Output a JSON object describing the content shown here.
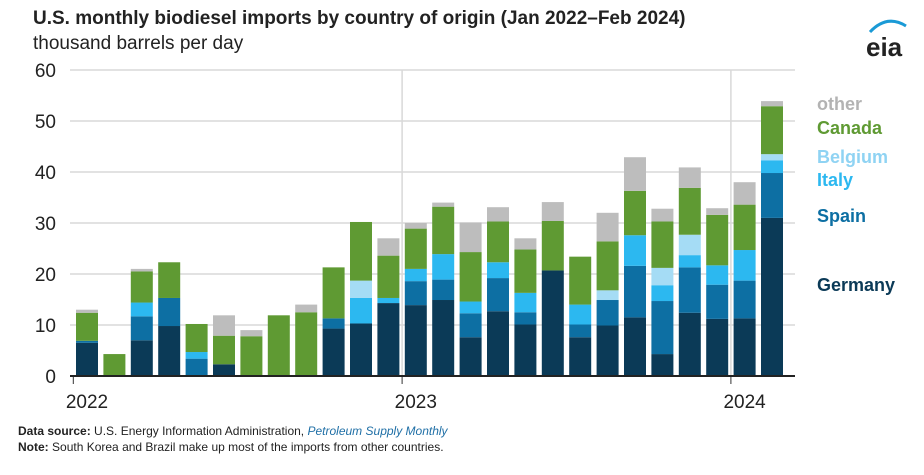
{
  "header": {
    "title": "U.S. monthly biodiesel imports by country of origin (Jan 2022–Feb 2024)",
    "subtitle": "thousand barrels per day",
    "logo_text": "eia"
  },
  "footer": {
    "source_label": "Data source:",
    "source_text": "U.S. Energy Information Administration,",
    "source_link": "Petroleum Supply Monthly",
    "note_label": "Note:",
    "note_text": "South Korea and Brazil make up most of the imports from other countries."
  },
  "chart_data": {
    "type": "bar",
    "stacked": true,
    "title": "U.S. monthly biodiesel imports by country of origin (Jan 2022–Feb 2024)",
    "ylabel": "thousand barrels per day",
    "ylim": [
      0,
      60
    ],
    "yticks": [
      "0",
      "10",
      "20",
      "30",
      "40",
      "50",
      "60"
    ],
    "xtick_labels": [
      {
        "label": "2022",
        "index": 0
      },
      {
        "label": "2023",
        "index": 12
      },
      {
        "label": "2024",
        "index": 24
      }
    ],
    "grid": true,
    "legend_placement": "right",
    "categories": [
      "Jan 2022",
      "Feb 2022",
      "Mar 2022",
      "Apr 2022",
      "May 2022",
      "Jun 2022",
      "Jul 2022",
      "Aug 2022",
      "Sep 2022",
      "Oct 2022",
      "Nov 2022",
      "Dec 2022",
      "Jan 2023",
      "Feb 2023",
      "Mar 2023",
      "Apr 2023",
      "May 2023",
      "Jun 2023",
      "Jul 2023",
      "Aug 2023",
      "Sep 2023",
      "Oct 2023",
      "Nov 2023",
      "Dec 2023",
      "Jan 2024",
      "Feb 2024"
    ],
    "series": [
      {
        "name": "Germany",
        "color": "#0b3a57",
        "values": [
          6.5,
          0,
          7,
          9.8,
          0,
          2.3,
          0,
          0,
          0,
          9.3,
          10.3,
          14.3,
          13.9,
          14.9,
          7.6,
          12.7,
          10.1,
          20.7,
          7.6,
          9.9,
          11.5,
          4.3,
          12.4,
          11.2,
          11.3,
          31
        ]
      },
      {
        "name": "Spain",
        "color": "#0d6fa3",
        "values": [
          0.4,
          0,
          4.7,
          5.5,
          3.4,
          0,
          0,
          0,
          0,
          2,
          0,
          0,
          4.7,
          4,
          4.7,
          6.5,
          2.4,
          0,
          2.5,
          5,
          10.1,
          10.4,
          8.9,
          6.7,
          7.4,
          8.8
        ]
      },
      {
        "name": "Italy",
        "color": "#2cb8f0",
        "values": [
          0,
          0,
          2.7,
          0,
          1.3,
          0,
          0,
          0,
          0,
          0,
          5,
          1,
          2.4,
          5,
          2.3,
          3.1,
          3.8,
          0,
          3.9,
          0,
          6,
          3.1,
          2.4,
          3.8,
          6,
          2.5
        ]
      },
      {
        "name": "Belgium",
        "color": "#a5dcf5",
        "values": [
          0,
          0,
          0,
          0,
          0,
          0,
          0,
          0,
          0,
          0,
          3.4,
          0,
          0,
          0,
          0,
          0,
          0,
          0,
          0,
          1.9,
          0,
          3.4,
          4,
          0,
          0,
          1.2
        ]
      },
      {
        "name": "Canada",
        "color": "#5f9a33",
        "values": [
          5.5,
          4.3,
          6.1,
          7,
          5.5,
          5.6,
          7.8,
          11.9,
          12.5,
          10,
          11.5,
          8.3,
          7.9,
          9.3,
          9.7,
          8,
          8.5,
          9.7,
          9.4,
          9.6,
          8.7,
          9.1,
          9.2,
          9.9,
          8.9,
          9.4
        ]
      },
      {
        "name": "other",
        "color": "#bdbdbd",
        "values": [
          0.6,
          0,
          0.5,
          0,
          0,
          4,
          1.2,
          0,
          1.5,
          0,
          0,
          3.4,
          1.1,
          0.8,
          5.8,
          2.8,
          2.2,
          3.7,
          0,
          5.6,
          6.6,
          2.5,
          4,
          1.3,
          4.4,
          1
        ]
      }
    ],
    "legend": [
      {
        "name": "other",
        "color": "#b3b3b3"
      },
      {
        "name": "Canada",
        "color": "#5f9a33"
      },
      {
        "name": "Belgium",
        "color": "#8fd3f3"
      },
      {
        "name": "Italy",
        "color": "#2cb8f0"
      },
      {
        "name": "Spain",
        "color": "#0d6fa3"
      },
      {
        "name": "Germany",
        "color": "#0b3a57"
      }
    ]
  }
}
